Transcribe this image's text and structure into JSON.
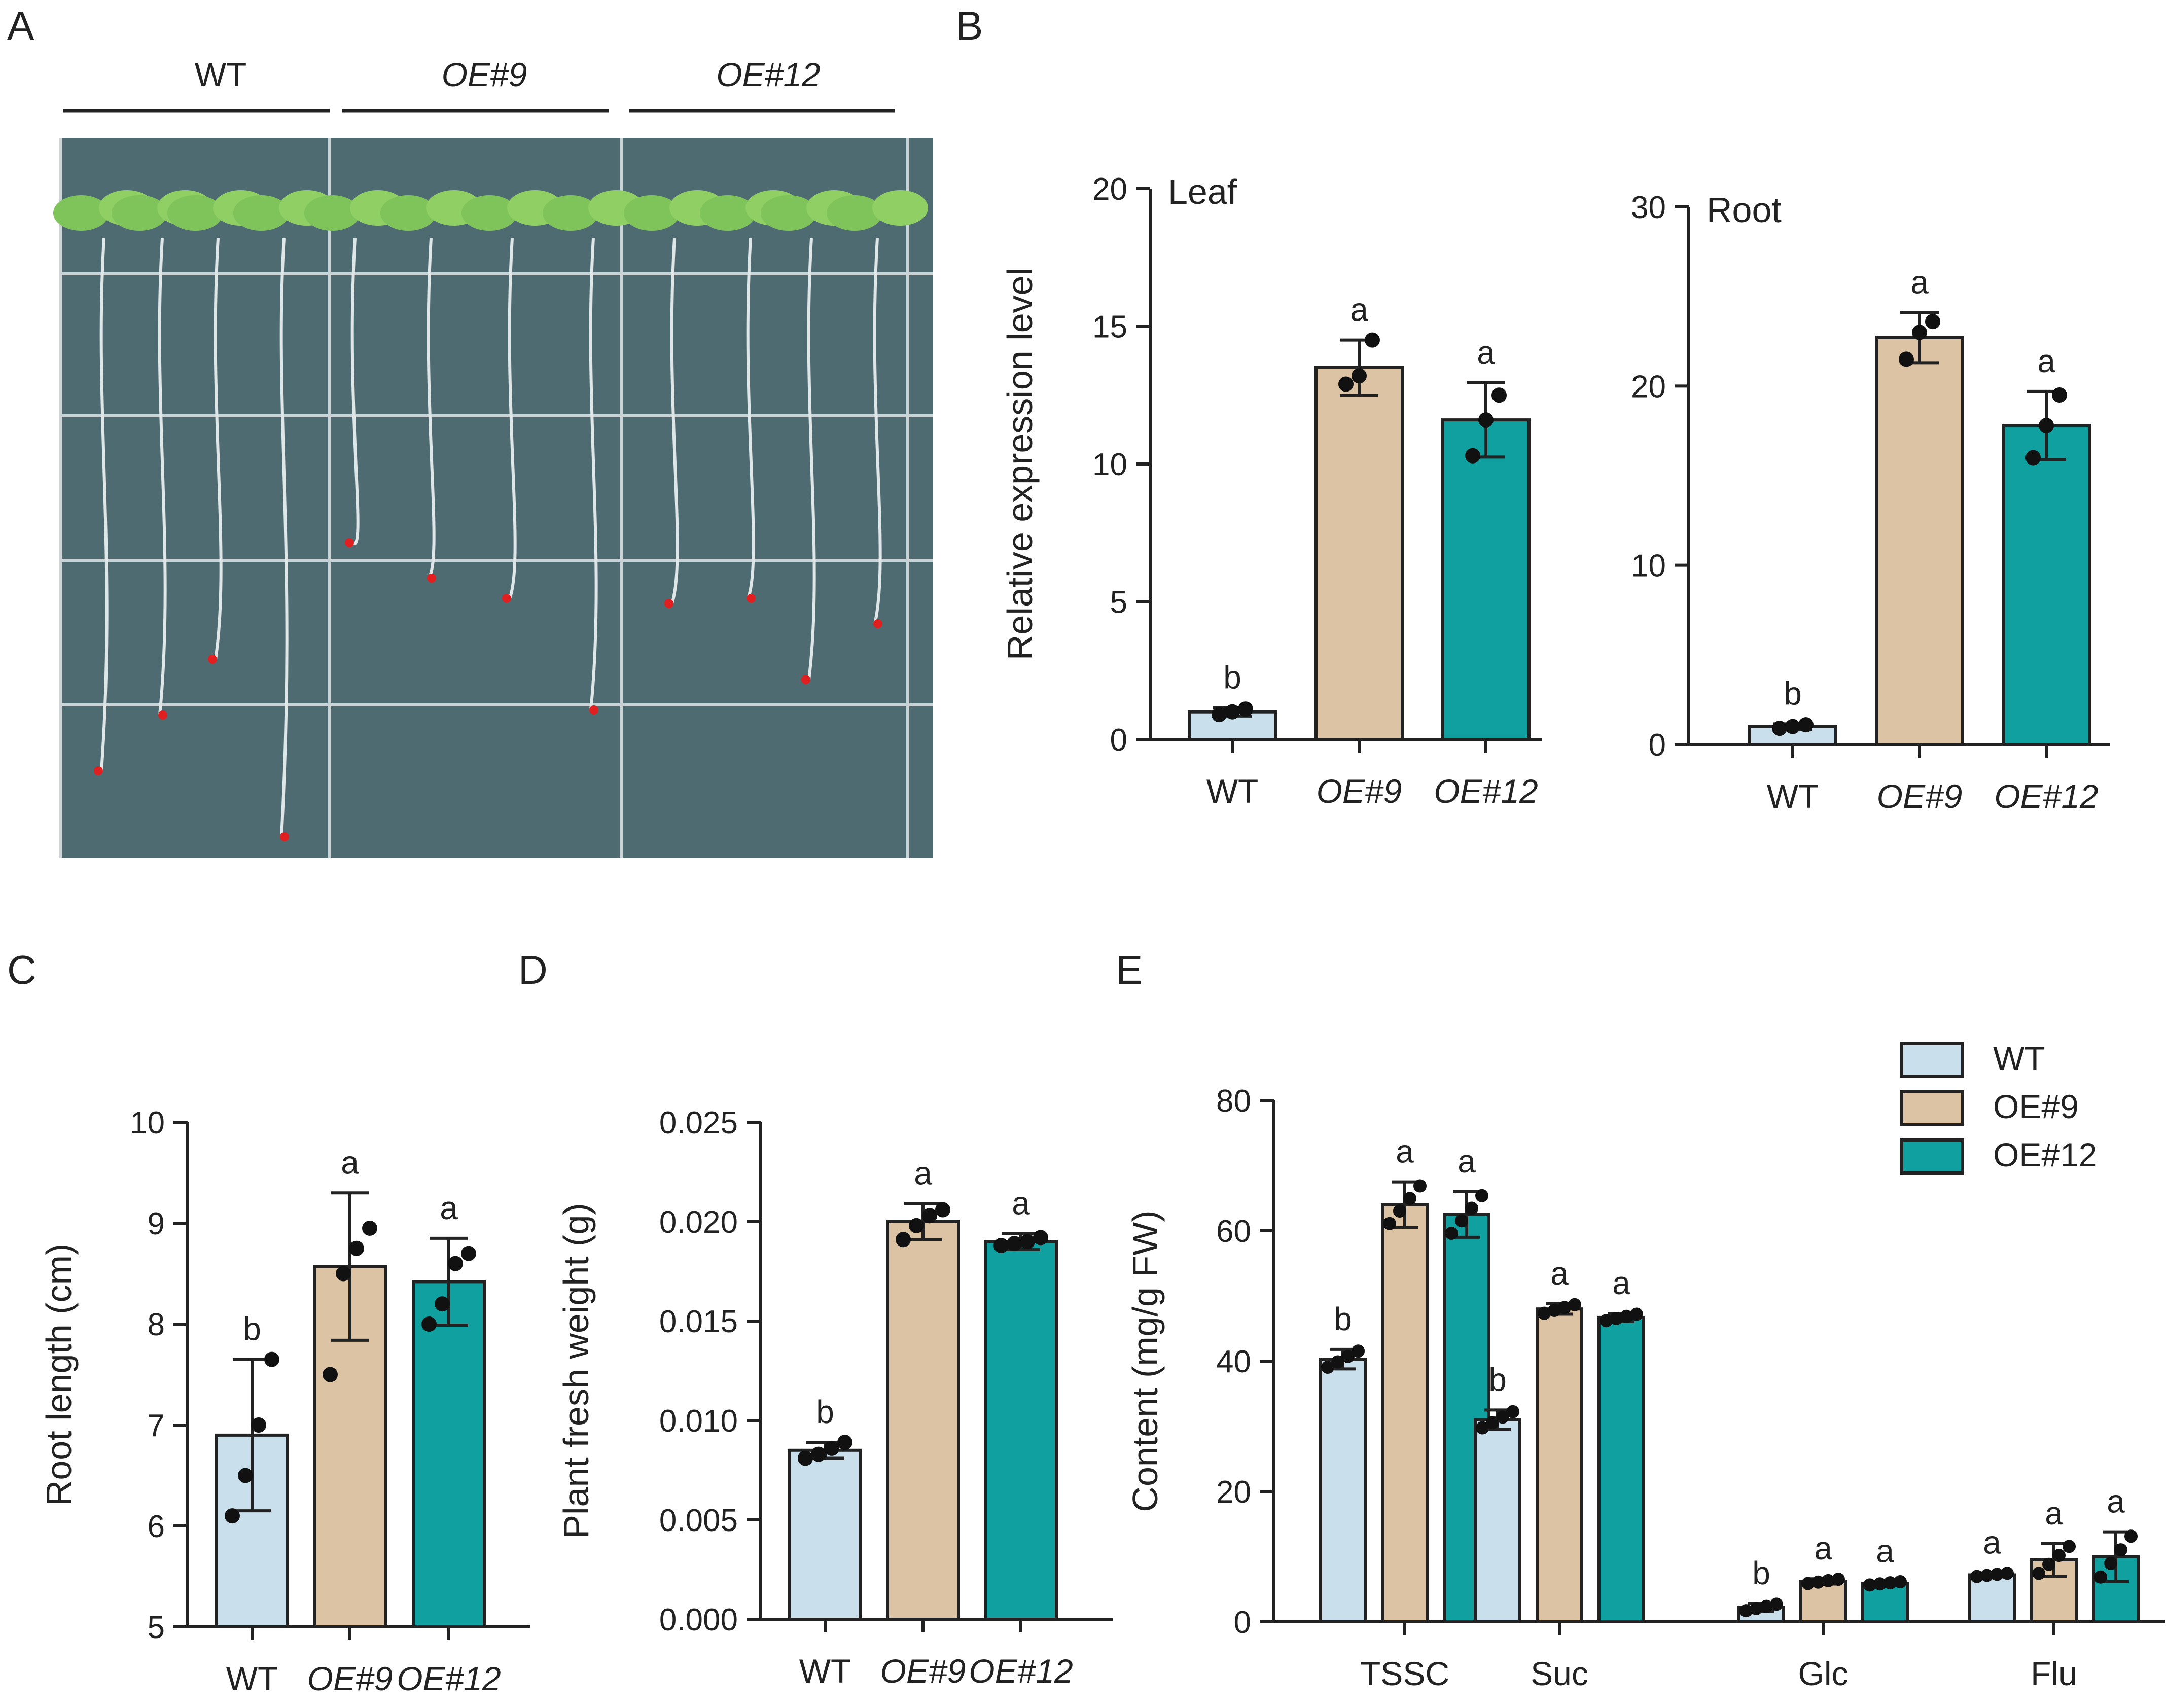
{
  "panel_labels": [
    "A",
    "B",
    "C",
    "D",
    "E"
  ],
  "colors": {
    "WT": "#c9dfeb",
    "OE#9": "#dcc3a3",
    "OE#12": "#11a0a0"
  },
  "photo": {
    "description_labels": [
      "WT",
      "OE#9",
      "OE#12"
    ]
  },
  "chart_data": [
    {
      "id": "B-leaf",
      "type": "bar",
      "title": "Leaf",
      "ylabel": "Relative expression level",
      "ylim": [
        0,
        20
      ],
      "yticks": [
        0,
        5,
        10,
        15,
        20
      ],
      "categories": [
        "WT",
        "OE#9",
        "OE#12"
      ],
      "values": [
        1.0,
        13.5,
        11.6
      ],
      "errors": [
        0.15,
        1.0,
        1.35
      ],
      "points": [
        [
          0.9,
          1.0,
          1.1
        ],
        [
          12.9,
          13.2,
          14.5
        ],
        [
          10.3,
          11.6,
          12.5
        ]
      ],
      "significance": [
        "b",
        "a",
        "a"
      ]
    },
    {
      "id": "B-root",
      "type": "bar",
      "title": "Root",
      "ylabel": "",
      "ylim": [
        0,
        30
      ],
      "yticks": [
        0,
        10,
        20,
        30
      ],
      "categories": [
        "WT",
        "OE#9",
        "OE#12"
      ],
      "values": [
        1.0,
        22.7,
        17.8
      ],
      "errors": [
        0.15,
        1.4,
        1.9
      ],
      "points": [
        [
          0.9,
          1.0,
          1.1
        ],
        [
          21.5,
          23.0,
          23.6
        ],
        [
          16.0,
          17.8,
          19.5
        ]
      ],
      "significance": [
        "b",
        "a",
        "a"
      ]
    },
    {
      "id": "C",
      "type": "bar",
      "title": "",
      "ylabel": "Root length (cm)",
      "ylim": [
        5,
        10
      ],
      "yticks": [
        5,
        6,
        7,
        8,
        9,
        10
      ],
      "categories": [
        "WT",
        "OE#9",
        "OE#12"
      ],
      "values": [
        6.9,
        8.57,
        8.42
      ],
      "errors": [
        0.75,
        0.73,
        0.43
      ],
      "points": [
        [
          6.1,
          6.5,
          7.0,
          7.65
        ],
        [
          7.5,
          8.5,
          8.75,
          8.95
        ],
        [
          8.0,
          8.2,
          8.6,
          8.7
        ]
      ],
      "significance": [
        "b",
        "a",
        "a"
      ]
    },
    {
      "id": "D",
      "type": "bar",
      "title": "",
      "ylabel": "Plant fresh weight (g)",
      "ylim": [
        0,
        0.025
      ],
      "yticks": [
        0.0,
        0.005,
        0.01,
        0.015,
        0.02,
        0.025
      ],
      "ytick_labels": [
        "0.000",
        "0.005",
        "0.010",
        "0.015",
        "0.020",
        "0.025"
      ],
      "categories": [
        "WT",
        "OE#9",
        "OE#12"
      ],
      "values": [
        0.0085,
        0.02,
        0.019
      ],
      "errors": [
        0.0004,
        0.0009,
        0.0004
      ],
      "points": [
        [
          0.0081,
          0.0083,
          0.0086,
          0.0089
        ],
        [
          0.0191,
          0.0198,
          0.0203,
          0.0206
        ],
        [
          0.0188,
          0.0189,
          0.019,
          0.0192
        ]
      ],
      "significance": [
        "b",
        "a",
        "a"
      ]
    },
    {
      "id": "E",
      "type": "bar",
      "title": "",
      "ylabel": "Content (mg/g FW)",
      "ylim": [
        0,
        80
      ],
      "yticks": [
        0,
        20,
        40,
        60,
        80
      ],
      "categories": [
        "TSSC",
        "Suc",
        "Glc",
        "Flu"
      ],
      "series": [
        {
          "name": "WT",
          "values": [
            40.3,
            31.0,
            2.2,
            7.2
          ],
          "errors": [
            1.5,
            1.5,
            0.6,
            0.3
          ],
          "significance": [
            "b",
            "b",
            "b",
            "a"
          ]
        },
        {
          "name": "OE#9",
          "values": [
            64.0,
            48.0,
            6.2,
            9.5
          ],
          "errors": [
            3.5,
            0.8,
            0.4,
            2.5
          ],
          "significance": [
            "a",
            "a",
            "a",
            "a"
          ]
        },
        {
          "name": "OE#12",
          "values": [
            62.5,
            46.7,
            5.9,
            10.0
          ],
          "errors": [
            3.5,
            0.6,
            0.3,
            3.8
          ],
          "significance": [
            "a",
            "a",
            "a",
            "a"
          ]
        }
      ],
      "legend": [
        "WT",
        "OE#9",
        "OE#12"
      ],
      "legend_position": "top-right"
    }
  ]
}
